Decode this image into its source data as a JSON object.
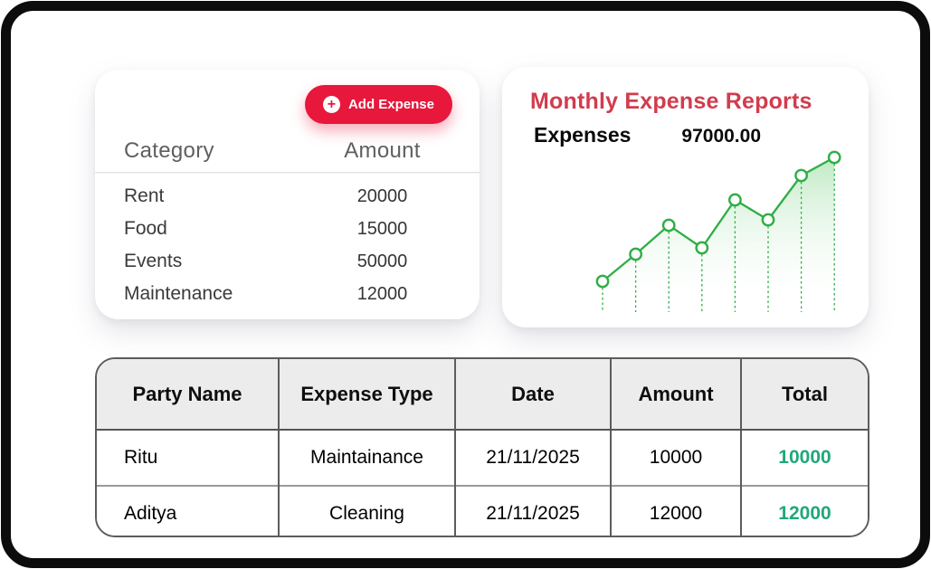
{
  "colors": {
    "brand_red": "#e8173c",
    "title_red": "#d23c4e",
    "chart_green": "#2fae46",
    "chart_fill_top": "#7fd48a",
    "total_green": "#1fa878",
    "frame_black": "#0c0c0c"
  },
  "expense_card": {
    "add_button": {
      "label": "Add Expense",
      "icon": "plus-circle-icon",
      "plus_glyph": "+"
    },
    "columns": {
      "category": "Category",
      "amount": "Amount"
    },
    "rows": [
      {
        "category": "Rent",
        "amount": "20000"
      },
      {
        "category": "Food",
        "amount": "15000"
      },
      {
        "category": "Events",
        "amount": "50000"
      },
      {
        "category": "Maintenance",
        "amount": "12000"
      }
    ]
  },
  "report_card": {
    "title": "Monthly Expense Reports",
    "expenses_label": "Expenses",
    "expenses_value": "97000.00"
  },
  "chart_data": {
    "type": "area",
    "title": "Monthly Expense Reports",
    "x": [
      1,
      2,
      3,
      4,
      5,
      6,
      7,
      8
    ],
    "series": [
      {
        "name": "Expenses",
        "values": [
          34,
          64,
          96,
          71,
          124,
          102,
          151,
          171
        ]
      }
    ],
    "annotations": [
      "97000.00"
    ],
    "xlabel": "",
    "ylabel": "",
    "ylim": [
      0,
      186
    ],
    "axes_visible": false,
    "grid": "dotted vertical drop-lines from each marker to baseline",
    "legend_position": "none",
    "marker": "open-circle",
    "units": "relative units estimated from pixel heights (axes unlabeled)"
  },
  "ledger_table": {
    "headers": [
      "Party Name",
      "Expense Type",
      "Date",
      "Amount",
      "Total"
    ],
    "rows": [
      [
        "Ritu",
        "Maintainance",
        "21/11/2025",
        "10000",
        "10000"
      ],
      [
        "Aditya",
        "Cleaning",
        "21/11/2025",
        "12000",
        "12000"
      ]
    ]
  }
}
